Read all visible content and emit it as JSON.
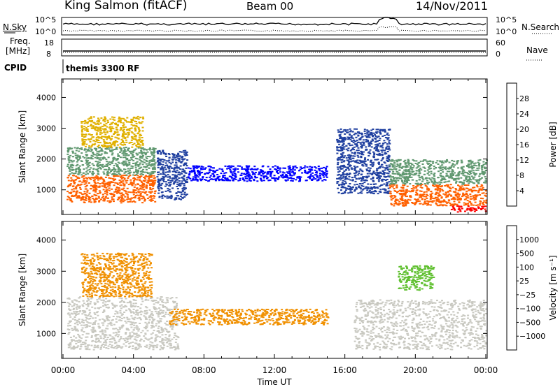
{
  "header": {
    "station": "King Salmon (fitACF)",
    "beam": "Beam 00",
    "date": "14/Nov/2011"
  },
  "noise_panel": {
    "left_label": "N.Sky",
    "right_label": "N.Search",
    "left_ticks": [
      "10^5",
      "10^0"
    ],
    "right_ticks": [
      "10^5",
      "10^0"
    ]
  },
  "freq_panel": {
    "left_label_1": "Freq.",
    "left_label_2": "[MHz]",
    "right_label": "Nave",
    "left_ticks": [
      "18",
      "8"
    ],
    "right_ticks": [
      "60",
      "0"
    ]
  },
  "cpid_panel": {
    "label": "CPID",
    "program": "themis 3300 RF"
  },
  "chart_data": [
    {
      "type": "heatmap",
      "name": "power",
      "ylabel": "Slant Range [km]",
      "ylim": [
        200,
        4600
      ],
      "yticks": [
        1000,
        2000,
        3000,
        4000
      ],
      "xlim": [
        0,
        24
      ],
      "colorbar": {
        "label": "Power [dB]",
        "ticks": [
          "28",
          "24",
          "20",
          "16",
          "12",
          "8",
          "4"
        ],
        "colors": [
          "#0000ff",
          "#2040a0",
          "#407050",
          "#609870",
          "#e0b000",
          "#f09000",
          "#ff6000",
          "#ff0000"
        ]
      },
      "regions": [
        {
          "t": [
            0.2,
            5.2
          ],
          "r": [
            600,
            1500
          ],
          "color": "#ff6000"
        },
        {
          "t": [
            0.2,
            5.2
          ],
          "r": [
            1500,
            2400
          ],
          "color": "#609870"
        },
        {
          "t": [
            1.0,
            4.5
          ],
          "r": [
            2400,
            3400
          ],
          "color": "#e0b000"
        },
        {
          "t": [
            5.3,
            7.0
          ],
          "r": [
            700,
            2300
          ],
          "color": "#2040a0"
        },
        {
          "t": [
            7.0,
            15.0
          ],
          "r": [
            1300,
            1800
          ],
          "color": "#0000ff"
        },
        {
          "t": [
            15.5,
            18.5
          ],
          "r": [
            900,
            3000
          ],
          "color": "#2040a0"
        },
        {
          "t": [
            18.5,
            24.0
          ],
          "r": [
            500,
            1200
          ],
          "color": "#ff6000"
        },
        {
          "t": [
            18.5,
            24.0
          ],
          "r": [
            1200,
            2000
          ],
          "color": "#609870"
        },
        {
          "t": [
            22.0,
            24.0
          ],
          "r": [
            300,
            500
          ],
          "color": "#ff0000"
        }
      ]
    },
    {
      "type": "heatmap",
      "name": "velocity",
      "ylabel": "Slant Range [km]",
      "ylim": [
        200,
        4600
      ],
      "yticks": [
        1000,
        2000,
        3000,
        4000
      ],
      "xlim": [
        0,
        24
      ],
      "xlabel": "Time UT",
      "xticks": [
        "00:00",
        "04:00",
        "08:00",
        "12:00",
        "16:00",
        "20:00",
        "00:00"
      ],
      "colorbar": {
        "label": "Velocity [m s⁻¹]",
        "ticks": [
          "1000",
          "500",
          "100",
          "25",
          "−25",
          "−100",
          "−500",
          "−1000"
        ],
        "colors": [
          "#ff0000",
          "#ff6000",
          "#f09000",
          "#e8a000",
          "#c8c8c0",
          "#60c030",
          "#209050",
          "#206080",
          "#2040c0"
        ]
      },
      "regions": [
        {
          "t": [
            0.2,
            6.5
          ],
          "r": [
            500,
            2200
          ],
          "color": "#c8c8c0"
        },
        {
          "t": [
            1.0,
            5.0
          ],
          "r": [
            2200,
            3600
          ],
          "color": "#f09000"
        },
        {
          "t": [
            6.0,
            15.0
          ],
          "r": [
            1300,
            1800
          ],
          "color": "#f09000"
        },
        {
          "t": [
            16.5,
            24.0
          ],
          "r": [
            500,
            2100
          ],
          "color": "#c8c8c0"
        },
        {
          "t": [
            19.0,
            21.0
          ],
          "r": [
            2400,
            3200
          ],
          "color": "#60c030"
        }
      ]
    }
  ]
}
